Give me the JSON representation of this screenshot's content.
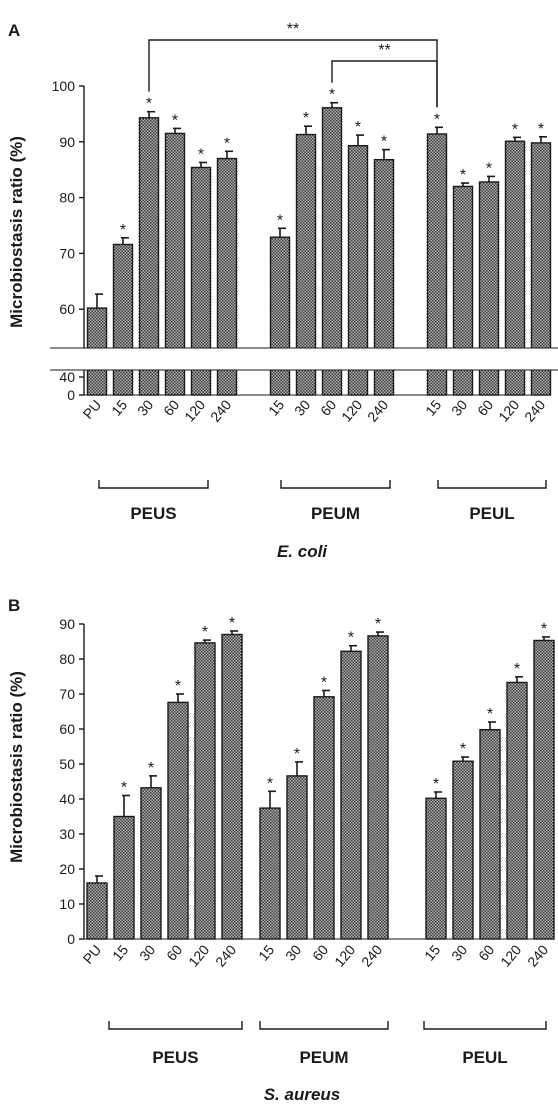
{
  "chart_data": [
    {
      "type": "bar",
      "panel": "A",
      "ylabel": "Microbiostasis ratio (%)",
      "xlabel": "E. coli",
      "ylim": [
        0,
        100
      ],
      "axis_break": [
        40,
        50
      ],
      "yticks": [
        "0",
        "40",
        "50",
        "60",
        "70",
        "80",
        "90",
        "100"
      ],
      "categories": [
        "PU",
        "15",
        "30",
        "60",
        "120",
        "240",
        "15",
        "30",
        "60",
        "120",
        "240",
        "15",
        "30",
        "60",
        "120",
        "240"
      ],
      "values": [
        60.2,
        71.6,
        94.3,
        91.5,
        85.4,
        87.0,
        72.9,
        91.3,
        96.1,
        89.3,
        86.8,
        91.4,
        82.0,
        82.8,
        90.1,
        89.8
      ],
      "errors": [
        2.5,
        1.2,
        1.1,
        0.9,
        0.9,
        1.3,
        1.6,
        1.5,
        0.9,
        1.9,
        1.8,
        1.2,
        0.6,
        1.0,
        0.7,
        1.1
      ],
      "significant": [
        false,
        true,
        true,
        true,
        true,
        true,
        true,
        true,
        true,
        true,
        true,
        true,
        true,
        true,
        true,
        true
      ],
      "star_label": "*",
      "groups": [
        {
          "label": "PEUS",
          "start": 0,
          "end": 5
        },
        {
          "label": "PEUM",
          "start": 6,
          "end": 10
        },
        {
          "label": "PEUL",
          "start": 11,
          "end": 15
        }
      ],
      "comparisons": [
        {
          "from": 2,
          "to": 11,
          "label": "**"
        },
        {
          "from": 8,
          "to": 11,
          "label": "**"
        }
      ]
    },
    {
      "type": "bar",
      "panel": "B",
      "ylabel": "Microbiostasis ratio (%)",
      "xlabel": "S. aureus",
      "ylim": [
        0,
        90
      ],
      "yticks": [
        "0",
        "10",
        "20",
        "30",
        "40",
        "50",
        "60",
        "70",
        "80",
        "90"
      ],
      "categories": [
        "PU",
        "15",
        "30",
        "60",
        "120",
        "240",
        "15",
        "30",
        "60",
        "120",
        "240",
        "15",
        "30",
        "60",
        "120",
        "240"
      ],
      "values": [
        16.0,
        35.0,
        43.2,
        67.6,
        84.6,
        87.0,
        37.4,
        46.6,
        69.2,
        82.2,
        86.6,
        40.2,
        50.8,
        59.8,
        73.3,
        85.3
      ],
      "errors": [
        2.0,
        6.0,
        3.4,
        2.4,
        0.8,
        1.0,
        4.8,
        4.0,
        1.8,
        1.6,
        1.1,
        1.8,
        1.2,
        2.2,
        1.6,
        1.0
      ],
      "significant": [
        false,
        true,
        true,
        true,
        true,
        true,
        true,
        true,
        true,
        true,
        true,
        true,
        true,
        true,
        true,
        true
      ],
      "star_label": "*",
      "groups": [
        {
          "label": "PEUS",
          "start": 0,
          "end": 5
        },
        {
          "label": "PEUM",
          "start": 6,
          "end": 10
        },
        {
          "label": "PEUL",
          "start": 11,
          "end": 15
        }
      ],
      "comparisons": []
    }
  ]
}
